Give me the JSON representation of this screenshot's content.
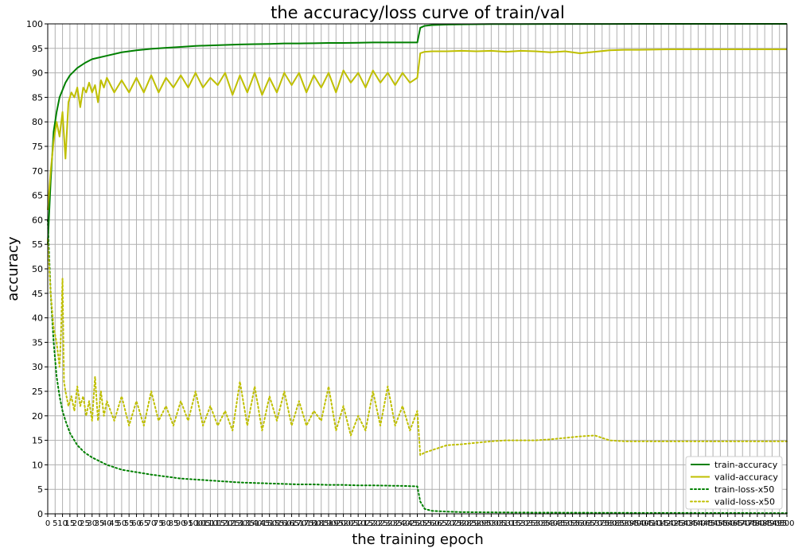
{
  "chart_data": {
    "type": "line",
    "title": "the accuracy/loss curve of train/val",
    "xlabel": "the training epoch",
    "ylabel": "accuracy",
    "xlim": [
      0,
      500
    ],
    "ylim": [
      0,
      100
    ],
    "x_ticks": [
      0,
      5,
      10,
      15,
      20,
      25,
      30,
      35,
      40,
      45,
      50,
      55,
      60,
      65,
      70,
      75,
      80,
      85,
      90,
      95,
      100,
      105,
      110,
      115,
      120,
      125,
      130,
      135,
      140,
      145,
      150,
      155,
      160,
      165,
      170,
      175,
      180,
      185,
      190,
      195,
      200,
      205,
      210,
      215,
      220,
      225,
      230,
      235,
      240,
      245,
      250,
      255,
      260,
      265,
      270,
      275,
      280,
      285,
      290,
      295,
      300,
      305,
      310,
      315,
      320,
      325,
      330,
      335,
      340,
      345,
      350,
      355,
      360,
      365,
      370,
      375,
      380,
      385,
      390,
      395,
      400,
      405,
      410,
      415,
      420,
      425,
      430,
      435,
      440,
      445,
      450,
      455,
      460,
      465,
      470,
      475,
      480,
      485,
      490,
      495,
      500
    ],
    "y_ticks": [
      0,
      5,
      10,
      15,
      20,
      25,
      30,
      35,
      40,
      45,
      50,
      55,
      60,
      65,
      70,
      75,
      80,
      85,
      90,
      95,
      100
    ],
    "grid": true,
    "legend_position": "bottom-right",
    "series": [
      {
        "name": "train-accuracy",
        "color": "#008000",
        "style": "solid",
        "x": [
          0,
          2,
          4,
          6,
          8,
          10,
          12,
          15,
          20,
          25,
          30,
          40,
          50,
          60,
          70,
          80,
          90,
          100,
          110,
          120,
          130,
          140,
          150,
          160,
          170,
          180,
          190,
          200,
          210,
          220,
          230,
          240,
          250,
          252,
          255,
          260,
          270,
          280,
          300,
          320,
          340,
          360,
          380,
          400,
          420,
          440,
          460,
          480,
          500
        ],
        "y": [
          55,
          68,
          78,
          82,
          85,
          86.5,
          88,
          89.5,
          91,
          92,
          92.8,
          93.5,
          94.2,
          94.6,
          94.9,
          95.1,
          95.3,
          95.5,
          95.6,
          95.7,
          95.8,
          95.85,
          95.9,
          96,
          96,
          96.05,
          96.1,
          96.1,
          96.15,
          96.2,
          96.2,
          96.2,
          96.2,
          99.2,
          99.6,
          99.75,
          99.85,
          99.9,
          99.95,
          99.96,
          99.97,
          99.98,
          99.98,
          99.99,
          99.99,
          100,
          100,
          100,
          100
        ]
      },
      {
        "name": "valid-accuracy",
        "color": "#BFBF00",
        "style": "solid",
        "x": [
          0,
          2,
          4,
          6,
          8,
          10,
          12,
          14,
          16,
          18,
          20,
          22,
          24,
          26,
          28,
          30,
          32,
          34,
          36,
          38,
          40,
          45,
          50,
          55,
          60,
          65,
          70,
          75,
          80,
          85,
          90,
          95,
          100,
          105,
          110,
          115,
          120,
          125,
          130,
          135,
          140,
          145,
          150,
          155,
          160,
          165,
          170,
          175,
          180,
          185,
          190,
          195,
          200,
          205,
          210,
          215,
          220,
          225,
          230,
          235,
          240,
          245,
          250,
          252,
          255,
          260,
          270,
          280,
          290,
          300,
          310,
          320,
          330,
          340,
          350,
          360,
          370,
          380,
          390,
          400,
          420,
          440,
          460,
          480,
          500
        ],
        "y": [
          62,
          70,
          76,
          80,
          77,
          82,
          72.5,
          84,
          86,
          85,
          87,
          83,
          87,
          86,
          88,
          86,
          87.5,
          84,
          88.5,
          87,
          89,
          86,
          88.5,
          86,
          89,
          86,
          89.5,
          86,
          89,
          87,
          89.5,
          87,
          90,
          87,
          89,
          87.5,
          90,
          85.5,
          89.5,
          86,
          90,
          85.5,
          89,
          86,
          90,
          87.5,
          90,
          86,
          89.5,
          87,
          90,
          86,
          90.5,
          88,
          90,
          87,
          90.5,
          88,
          90,
          87.5,
          90,
          88,
          89,
          94,
          94.3,
          94.4,
          94.4,
          94.5,
          94.4,
          94.5,
          94.3,
          94.5,
          94.4,
          94.2,
          94.4,
          94.0,
          94.3,
          94.6,
          94.7,
          94.7,
          94.8,
          94.8,
          94.8,
          94.8,
          94.8
        ]
      },
      {
        "name": "train-loss-x50",
        "color": "#008000",
        "style": "dotted",
        "x": [
          0,
          2,
          4,
          6,
          8,
          10,
          12,
          15,
          20,
          25,
          30,
          40,
          50,
          60,
          70,
          80,
          90,
          100,
          110,
          120,
          130,
          140,
          150,
          160,
          170,
          180,
          190,
          200,
          210,
          220,
          230,
          240,
          250,
          252,
          255,
          260,
          270,
          280,
          300,
          320,
          340,
          360,
          380,
          400,
          420,
          440,
          460,
          480,
          500
        ],
        "y": [
          60,
          45,
          35,
          28,
          24,
          21,
          19,
          16.5,
          14,
          12.5,
          11.5,
          10,
          9,
          8.5,
          8,
          7.6,
          7.2,
          7,
          6.8,
          6.6,
          6.4,
          6.3,
          6.2,
          6.1,
          6.0,
          6.0,
          5.9,
          5.9,
          5.8,
          5.8,
          5.75,
          5.7,
          5.6,
          2.5,
          1.0,
          0.6,
          0.45,
          0.35,
          0.3,
          0.26,
          0.24,
          0.22,
          0.2,
          0.19,
          0.18,
          0.17,
          0.16,
          0.15,
          0.15
        ]
      },
      {
        "name": "valid-loss-x50",
        "color": "#BFBF00",
        "style": "dotted",
        "x": [
          0,
          2,
          4,
          6,
          8,
          9,
          10,
          11,
          12,
          14,
          16,
          18,
          20,
          22,
          24,
          26,
          28,
          30,
          32,
          34,
          36,
          38,
          40,
          45,
          50,
          55,
          60,
          65,
          70,
          75,
          80,
          85,
          90,
          95,
          100,
          105,
          110,
          115,
          120,
          125,
          130,
          135,
          140,
          145,
          150,
          155,
          160,
          165,
          170,
          175,
          180,
          185,
          190,
          195,
          200,
          205,
          210,
          215,
          220,
          225,
          230,
          235,
          240,
          245,
          250,
          252,
          255,
          260,
          270,
          280,
          290,
          300,
          310,
          320,
          330,
          340,
          350,
          360,
          370,
          380,
          390,
          400,
          420,
          440,
          460,
          480,
          500
        ],
        "y": [
          56,
          45,
          38,
          35,
          30,
          37,
          48,
          27,
          25,
          22,
          24,
          21,
          26,
          22,
          24,
          20,
          23,
          19,
          28,
          19,
          25,
          20,
          23,
          19,
          24,
          18,
          23,
          18,
          25,
          19,
          22,
          18,
          23,
          19,
          25,
          18,
          22,
          18,
          21,
          17,
          27,
          18,
          26,
          17,
          24,
          19,
          25,
          18,
          23,
          18,
          21,
          19,
          26,
          17,
          22,
          16,
          20,
          17,
          25,
          18,
          26,
          18,
          22,
          17,
          21,
          12,
          12.5,
          13,
          14,
          14.2,
          14.5,
          14.8,
          15,
          15,
          15,
          15.2,
          15.5,
          15.8,
          16,
          15,
          14.8,
          14.8,
          14.8,
          14.8,
          14.8,
          14.8,
          14.8
        ]
      }
    ]
  }
}
